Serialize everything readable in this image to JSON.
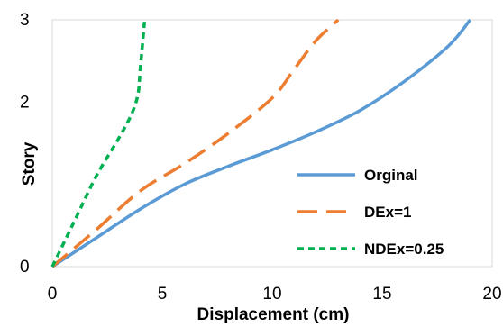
{
  "chart_data": {
    "type": "line",
    "xlabel": "Displacement (cm)",
    "ylabel": "Story",
    "xlim": [
      0,
      20
    ],
    "ylim": [
      0,
      3
    ],
    "x_ticks": [
      "0",
      "5",
      "10",
      "15",
      "20"
    ],
    "y_ticks": [
      "0",
      "2",
      "3"
    ],
    "y_tick_values": [
      0,
      2,
      3
    ],
    "grid": false,
    "legend_position": "bottom-right",
    "series": [
      {
        "name": "Orginal",
        "color": "#5B9BD5",
        "dash": "solid",
        "x": [
          0,
          2,
          4,
          6,
          8,
          10,
          12,
          14,
          16,
          18,
          19
        ],
        "y": [
          0,
          0.35,
          0.7,
          1.0,
          1.22,
          1.42,
          1.64,
          1.9,
          2.25,
          2.68,
          3.0
        ]
      },
      {
        "name": "DEx=1",
        "color": "#ED7D31",
        "dash": "long-dash",
        "x": [
          0,
          2,
          4,
          6,
          8,
          10,
          11,
          12,
          13
        ],
        "y": [
          0,
          0.45,
          0.92,
          1.25,
          1.62,
          2.05,
          2.4,
          2.75,
          3.0
        ]
      },
      {
        "name": "NDEx=0.25",
        "color": "#00B050",
        "dash": "short-dash",
        "x": [
          0,
          1,
          2,
          3,
          3.6,
          3.9,
          4.0,
          4.2
        ],
        "y": [
          0,
          0.55,
          1.1,
          1.55,
          1.85,
          2.1,
          2.4,
          3.0
        ]
      }
    ]
  }
}
